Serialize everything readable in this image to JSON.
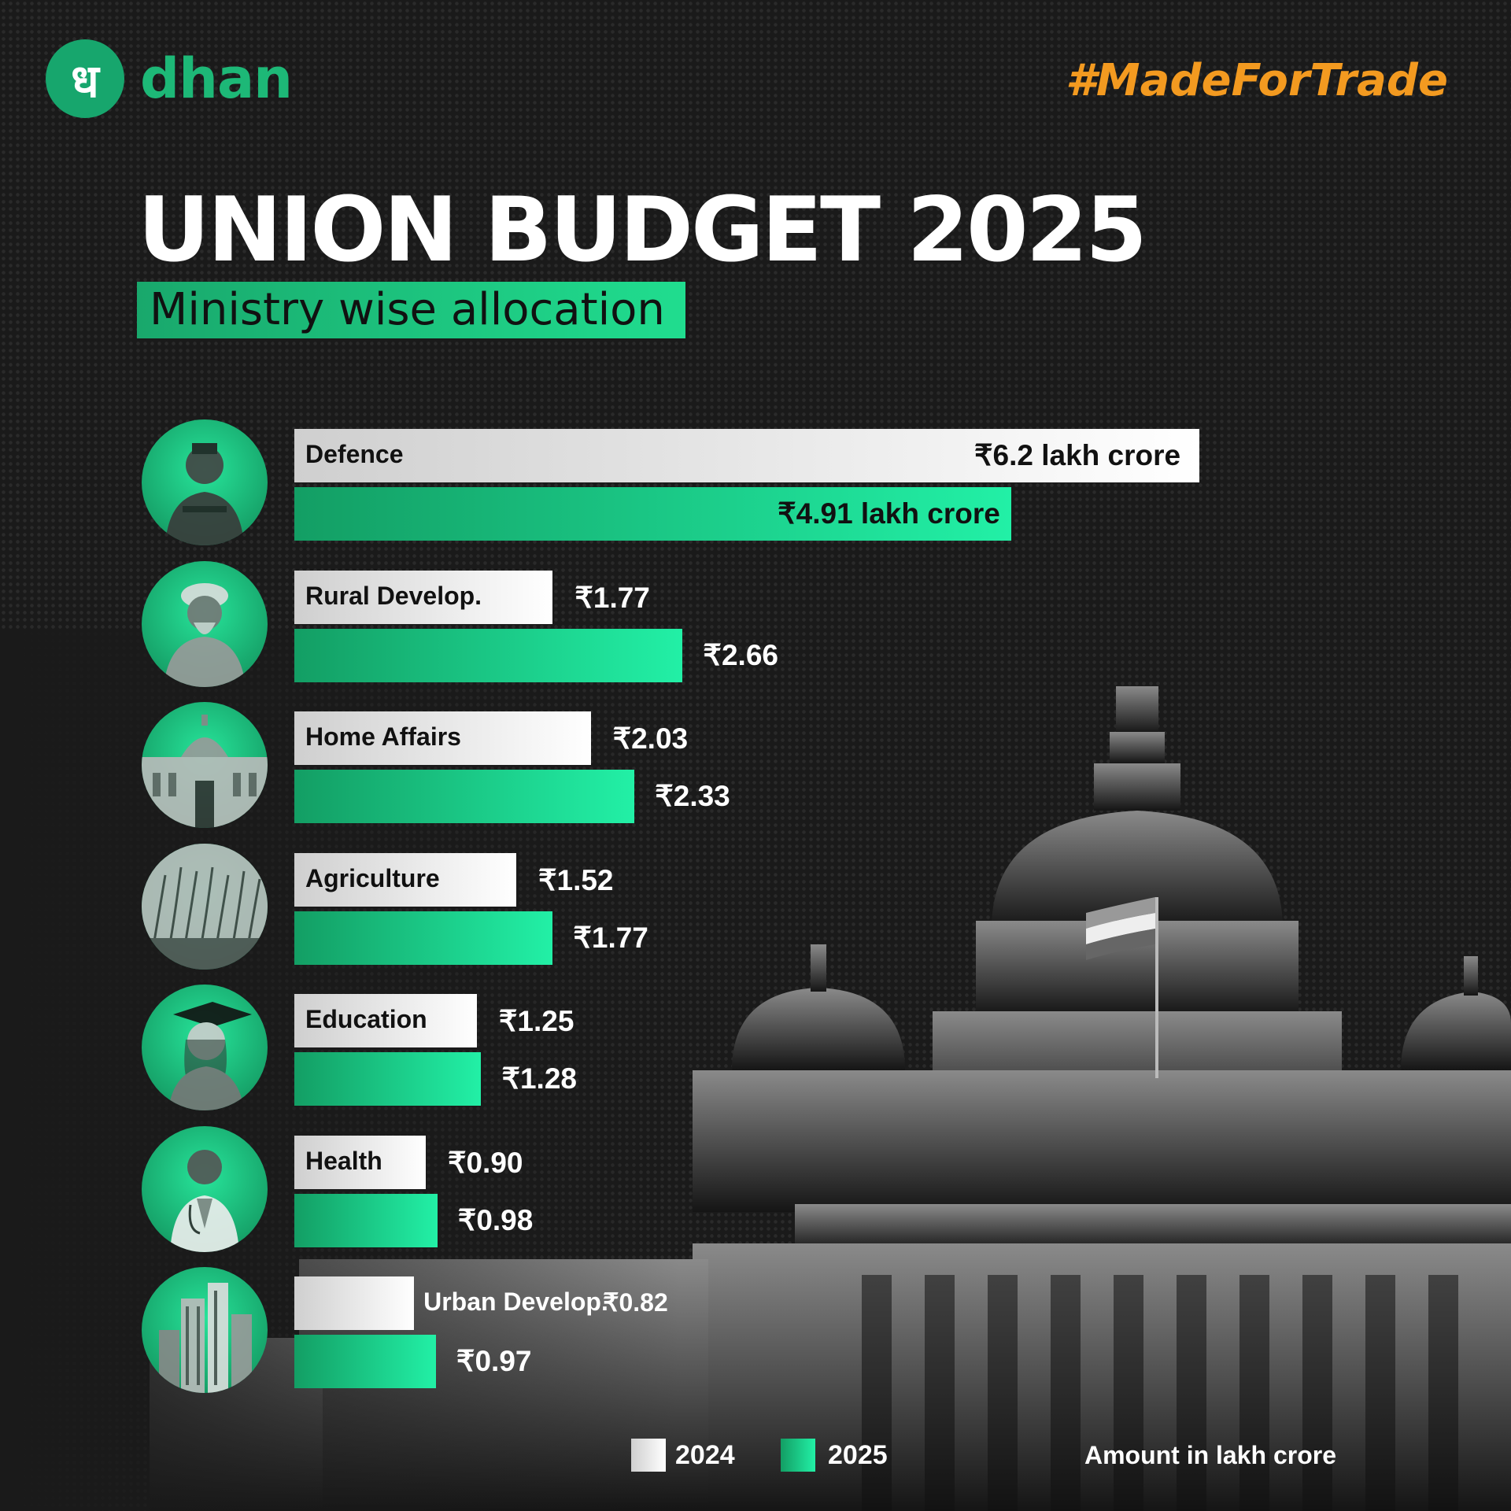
{
  "brand": {
    "logo_glyph": "ध",
    "name": "dhan",
    "hashtag": "#MadeForTrade",
    "accent": "#1db877",
    "hashtag_color": "#f39a20"
  },
  "title": "UNION BUDGET 2025",
  "subtitle": "Ministry wise allocation",
  "chart_data": {
    "type": "bar",
    "orientation": "horizontal",
    "unit": "lakh crore",
    "categories": [
      "Defence",
      "Rural Develop.",
      "Home Affairs",
      "Agriculture",
      "Education",
      "Health",
      "Urban Develop."
    ],
    "series": [
      {
        "name": "2024",
        "color": "#ffffff",
        "values": [
          6.2,
          1.77,
          2.03,
          1.52,
          1.25,
          0.9,
          0.82
        ],
        "labels": [
          "₹6.2 lakh crore",
          "₹1.77",
          "₹2.03",
          "₹1.52",
          "₹1.25",
          "₹0.90",
          "₹0.82"
        ]
      },
      {
        "name": "2025",
        "color": "#1fd894",
        "values": [
          4.91,
          2.66,
          2.33,
          1.77,
          1.28,
          0.98,
          0.97
        ],
        "labels": [
          "₹4.91 lakh crore",
          "₹2.66",
          "₹2.33",
          "₹1.77",
          "₹1.28",
          "₹0.98",
          "₹0.97"
        ]
      }
    ],
    "icons": [
      "soldier-portrait",
      "farmer-portrait",
      "parliament-building",
      "wheat-field",
      "graduate-student",
      "doctor-portrait",
      "city-skyscrapers"
    ],
    "legend": [
      "2024",
      "2025"
    ],
    "legend_position": "bottom",
    "note": "Amount in lakh crore"
  }
}
